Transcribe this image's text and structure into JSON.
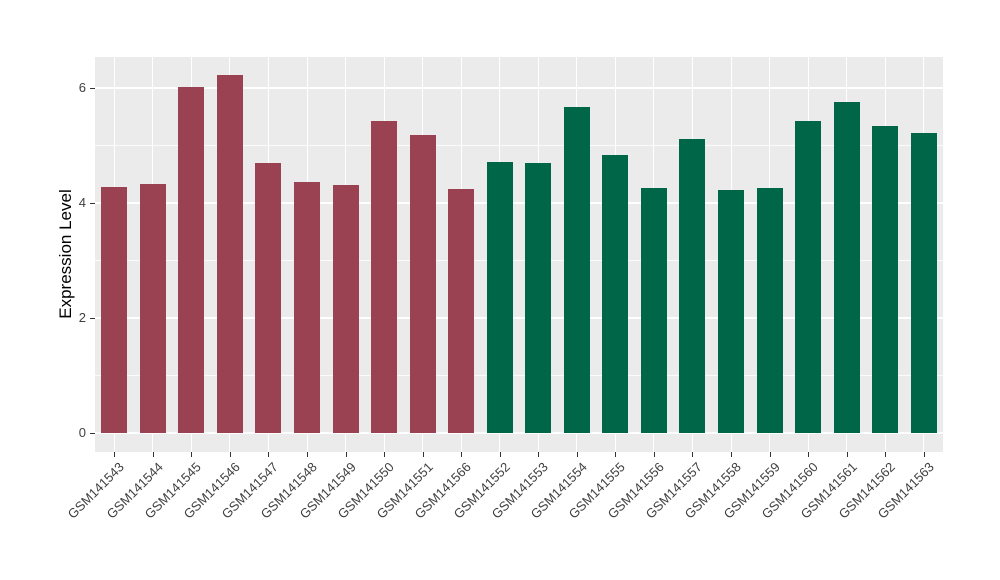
{
  "chart_data": {
    "type": "bar",
    "title": "",
    "xlabel": "",
    "ylabel": "Expression Level",
    "ylim": [
      0,
      6.53
    ],
    "yticks": [
      0,
      2,
      4,
      6
    ],
    "yminor_ticks": [
      1,
      3,
      5
    ],
    "grid": "on",
    "legend": "none",
    "panel_bg": "#EBEBEB",
    "grid_color": "#FFFFFF",
    "tick_color": "#333333",
    "axis_text_color": "#404040",
    "axis_title_color": "#000000",
    "group_colors": {
      "group1": "#9A4252",
      "group2": "#006648"
    },
    "categories": [
      "GSM141543",
      "GSM141544",
      "GSM141545",
      "GSM141546",
      "GSM141547",
      "GSM141548",
      "GSM141549",
      "GSM141550",
      "GSM141551",
      "GSM141566",
      "GSM141552",
      "GSM141553",
      "GSM141554",
      "GSM141555",
      "GSM141556",
      "GSM141557",
      "GSM141558",
      "GSM141559",
      "GSM141560",
      "GSM141561",
      "GSM141562",
      "GSM141563"
    ],
    "values": [
      4.28,
      4.32,
      6.01,
      6.22,
      4.69,
      4.37,
      4.31,
      5.42,
      5.18,
      4.24,
      4.71,
      4.69,
      5.67,
      4.83,
      4.26,
      5.11,
      4.23,
      4.26,
      5.43,
      5.76,
      5.33,
      5.21
    ],
    "groups": [
      "group1",
      "group1",
      "group1",
      "group1",
      "group1",
      "group1",
      "group1",
      "group1",
      "group1",
      "group1",
      "group2",
      "group2",
      "group2",
      "group2",
      "group2",
      "group2",
      "group2",
      "group2",
      "group2",
      "group2",
      "group2",
      "group2"
    ]
  }
}
